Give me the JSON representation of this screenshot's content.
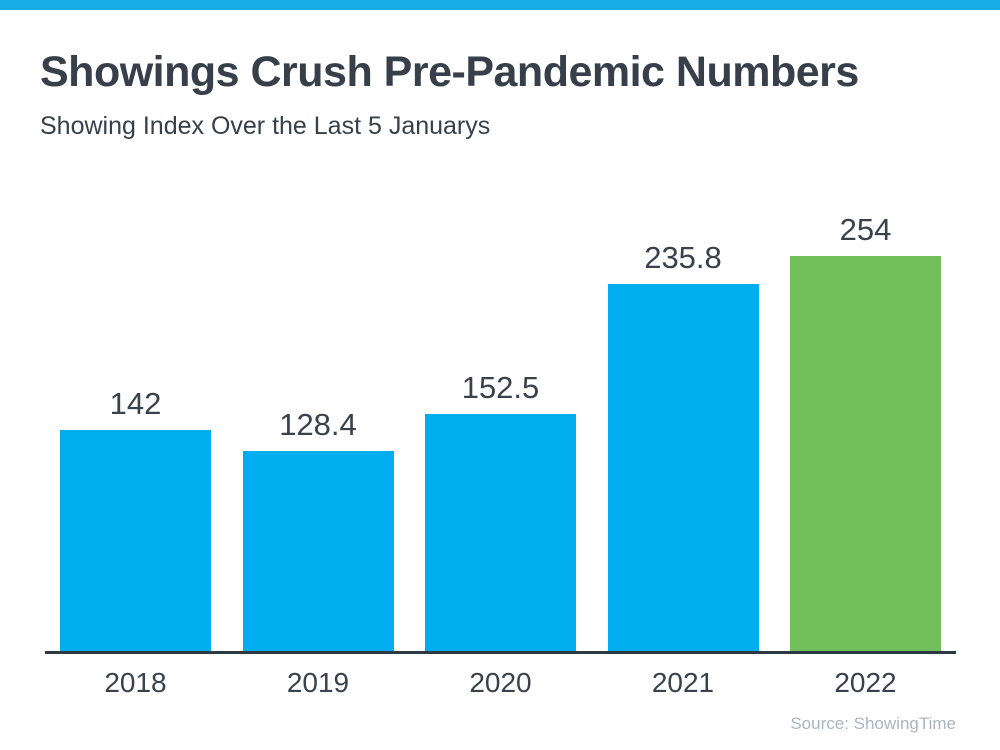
{
  "banner": {
    "accent_color": "#1aabe9"
  },
  "header": {
    "title": "Showings Crush Pre-Pandemic Numbers",
    "subtitle": "Showing Index Over the Last 5 Januarys"
  },
  "chart_data": {
    "type": "bar",
    "title": "Showings Crush Pre-Pandemic Numbers",
    "subtitle": "Showing Index Over the Last 5 Januarys",
    "categories": [
      "2018",
      "2019",
      "2020",
      "2021",
      "2022"
    ],
    "values": [
      142,
      128.4,
      152.5,
      235.8,
      254
    ],
    "value_labels": [
      "142",
      "128.4",
      "152.5",
      "235.8",
      "254"
    ],
    "bar_colors": [
      "#00aeef",
      "#00aeef",
      "#00aeef",
      "#00aeef",
      "#72c05a"
    ],
    "highlight_color": "#72c05a",
    "series_color": "#00aeef",
    "xlabel": "",
    "ylabel": "",
    "ylim": [
      0,
      270
    ],
    "grid": false,
    "legend": false,
    "y_axis_visible": false,
    "x_axis_line_color": "#2d3a43",
    "value_label_position": "above-bar"
  },
  "footer": {
    "source": "Source: ShowingTime"
  }
}
